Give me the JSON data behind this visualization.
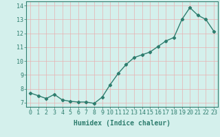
{
  "x": [
    0,
    1,
    2,
    3,
    4,
    5,
    6,
    7,
    8,
    9,
    10,
    11,
    12,
    13,
    14,
    15,
    16,
    17,
    18,
    19,
    20,
    21,
    22,
    23
  ],
  "y": [
    7.7,
    7.5,
    7.3,
    7.6,
    7.2,
    7.1,
    7.05,
    7.05,
    6.95,
    7.4,
    8.3,
    9.1,
    9.75,
    10.25,
    10.45,
    10.65,
    11.05,
    11.45,
    11.7,
    13.0,
    13.85,
    13.3,
    13.0,
    12.15
  ],
  "line_color": "#2e7d6e",
  "marker": "D",
  "marker_size": 2.2,
  "bg_color": "#d4f0ec",
  "grid_color": "#e8b0b0",
  "xlabel": "Humidex (Indice chaleur)",
  "ylim": [
    6.7,
    14.3
  ],
  "xlim": [
    -0.5,
    23.5
  ],
  "yticks": [
    7,
    8,
    9,
    10,
    11,
    12,
    13,
    14
  ],
  "xticks": [
    0,
    1,
    2,
    3,
    4,
    5,
    6,
    7,
    8,
    9,
    10,
    11,
    12,
    13,
    14,
    15,
    16,
    17,
    18,
    19,
    20,
    21,
    22,
    23
  ],
  "xlabel_fontsize": 7,
  "tick_fontsize": 6,
  "line_width": 1.0,
  "spine_color": "#2e7d6e"
}
